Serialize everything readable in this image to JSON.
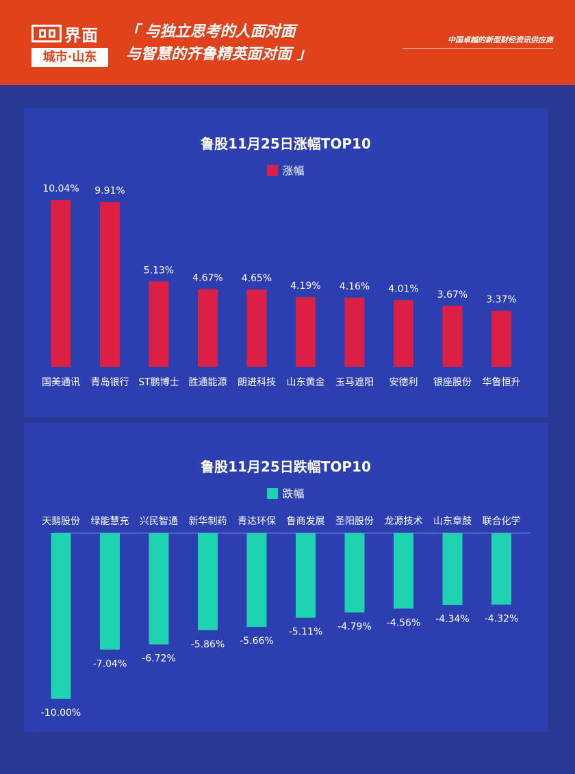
{
  "header": {
    "logo_brand": "界面",
    "logo_city": "城市·山东",
    "slogan_line1": "「 与独立思考的人面对面",
    "slogan_line2": "与智慧的齐鲁精英面对面 」",
    "tagline": "中国卓越的新型财经资讯供应商"
  },
  "colors": {
    "header_bg": "#e0431c",
    "page_bg": "#2a3a94",
    "panel_bg": "#2c3fb0",
    "gain_bar": "#dc1f44",
    "loss_bar": "#1fd2b0"
  },
  "chart_data": [
    {
      "type": "bar",
      "title": "鲁股11月25日涨幅TOP10",
      "legend": "涨幅",
      "legend_position": "top-center",
      "categories": [
        "国美通讯",
        "青岛银行",
        "ST鹏博士",
        "胜通能源",
        "朗进科技",
        "山东黄金",
        "玉马遮阳",
        "安德利",
        "银座股份",
        "华鲁恒升"
      ],
      "values": [
        10.04,
        9.91,
        5.13,
        4.67,
        4.65,
        4.19,
        4.16,
        4.01,
        3.67,
        3.37
      ],
      "data_labels": [
        "10.04%",
        "9.91%",
        "5.13%",
        "4.67%",
        "4.65%",
        "4.19%",
        "4.16%",
        "4.01%",
        "3.67%",
        "3.37%"
      ],
      "ylim": [
        0,
        10.04
      ],
      "grid": false
    },
    {
      "type": "bar",
      "title": "鲁股11月25日跌幅TOP10",
      "legend": "跌幅",
      "legend_position": "top-center",
      "categories": [
        "天鹅股份",
        "绿能慧充",
        "兴民智通",
        "新华制药",
        "青达环保",
        "鲁商发展",
        "圣阳股份",
        "龙源技术",
        "山东章鼓",
        "联合化学"
      ],
      "values": [
        -10.0,
        -7.04,
        -6.72,
        -5.86,
        -5.66,
        -5.11,
        -4.79,
        -4.56,
        -4.34,
        -4.32
      ],
      "data_labels": [
        "-10.00%",
        "-7.04%",
        "-6.72%",
        "-5.86%",
        "-5.66%",
        "-5.11%",
        "-4.79%",
        "-4.56%",
        "-4.34%",
        "-4.32%"
      ],
      "ylim": [
        -10.0,
        0
      ],
      "grid": false
    }
  ]
}
